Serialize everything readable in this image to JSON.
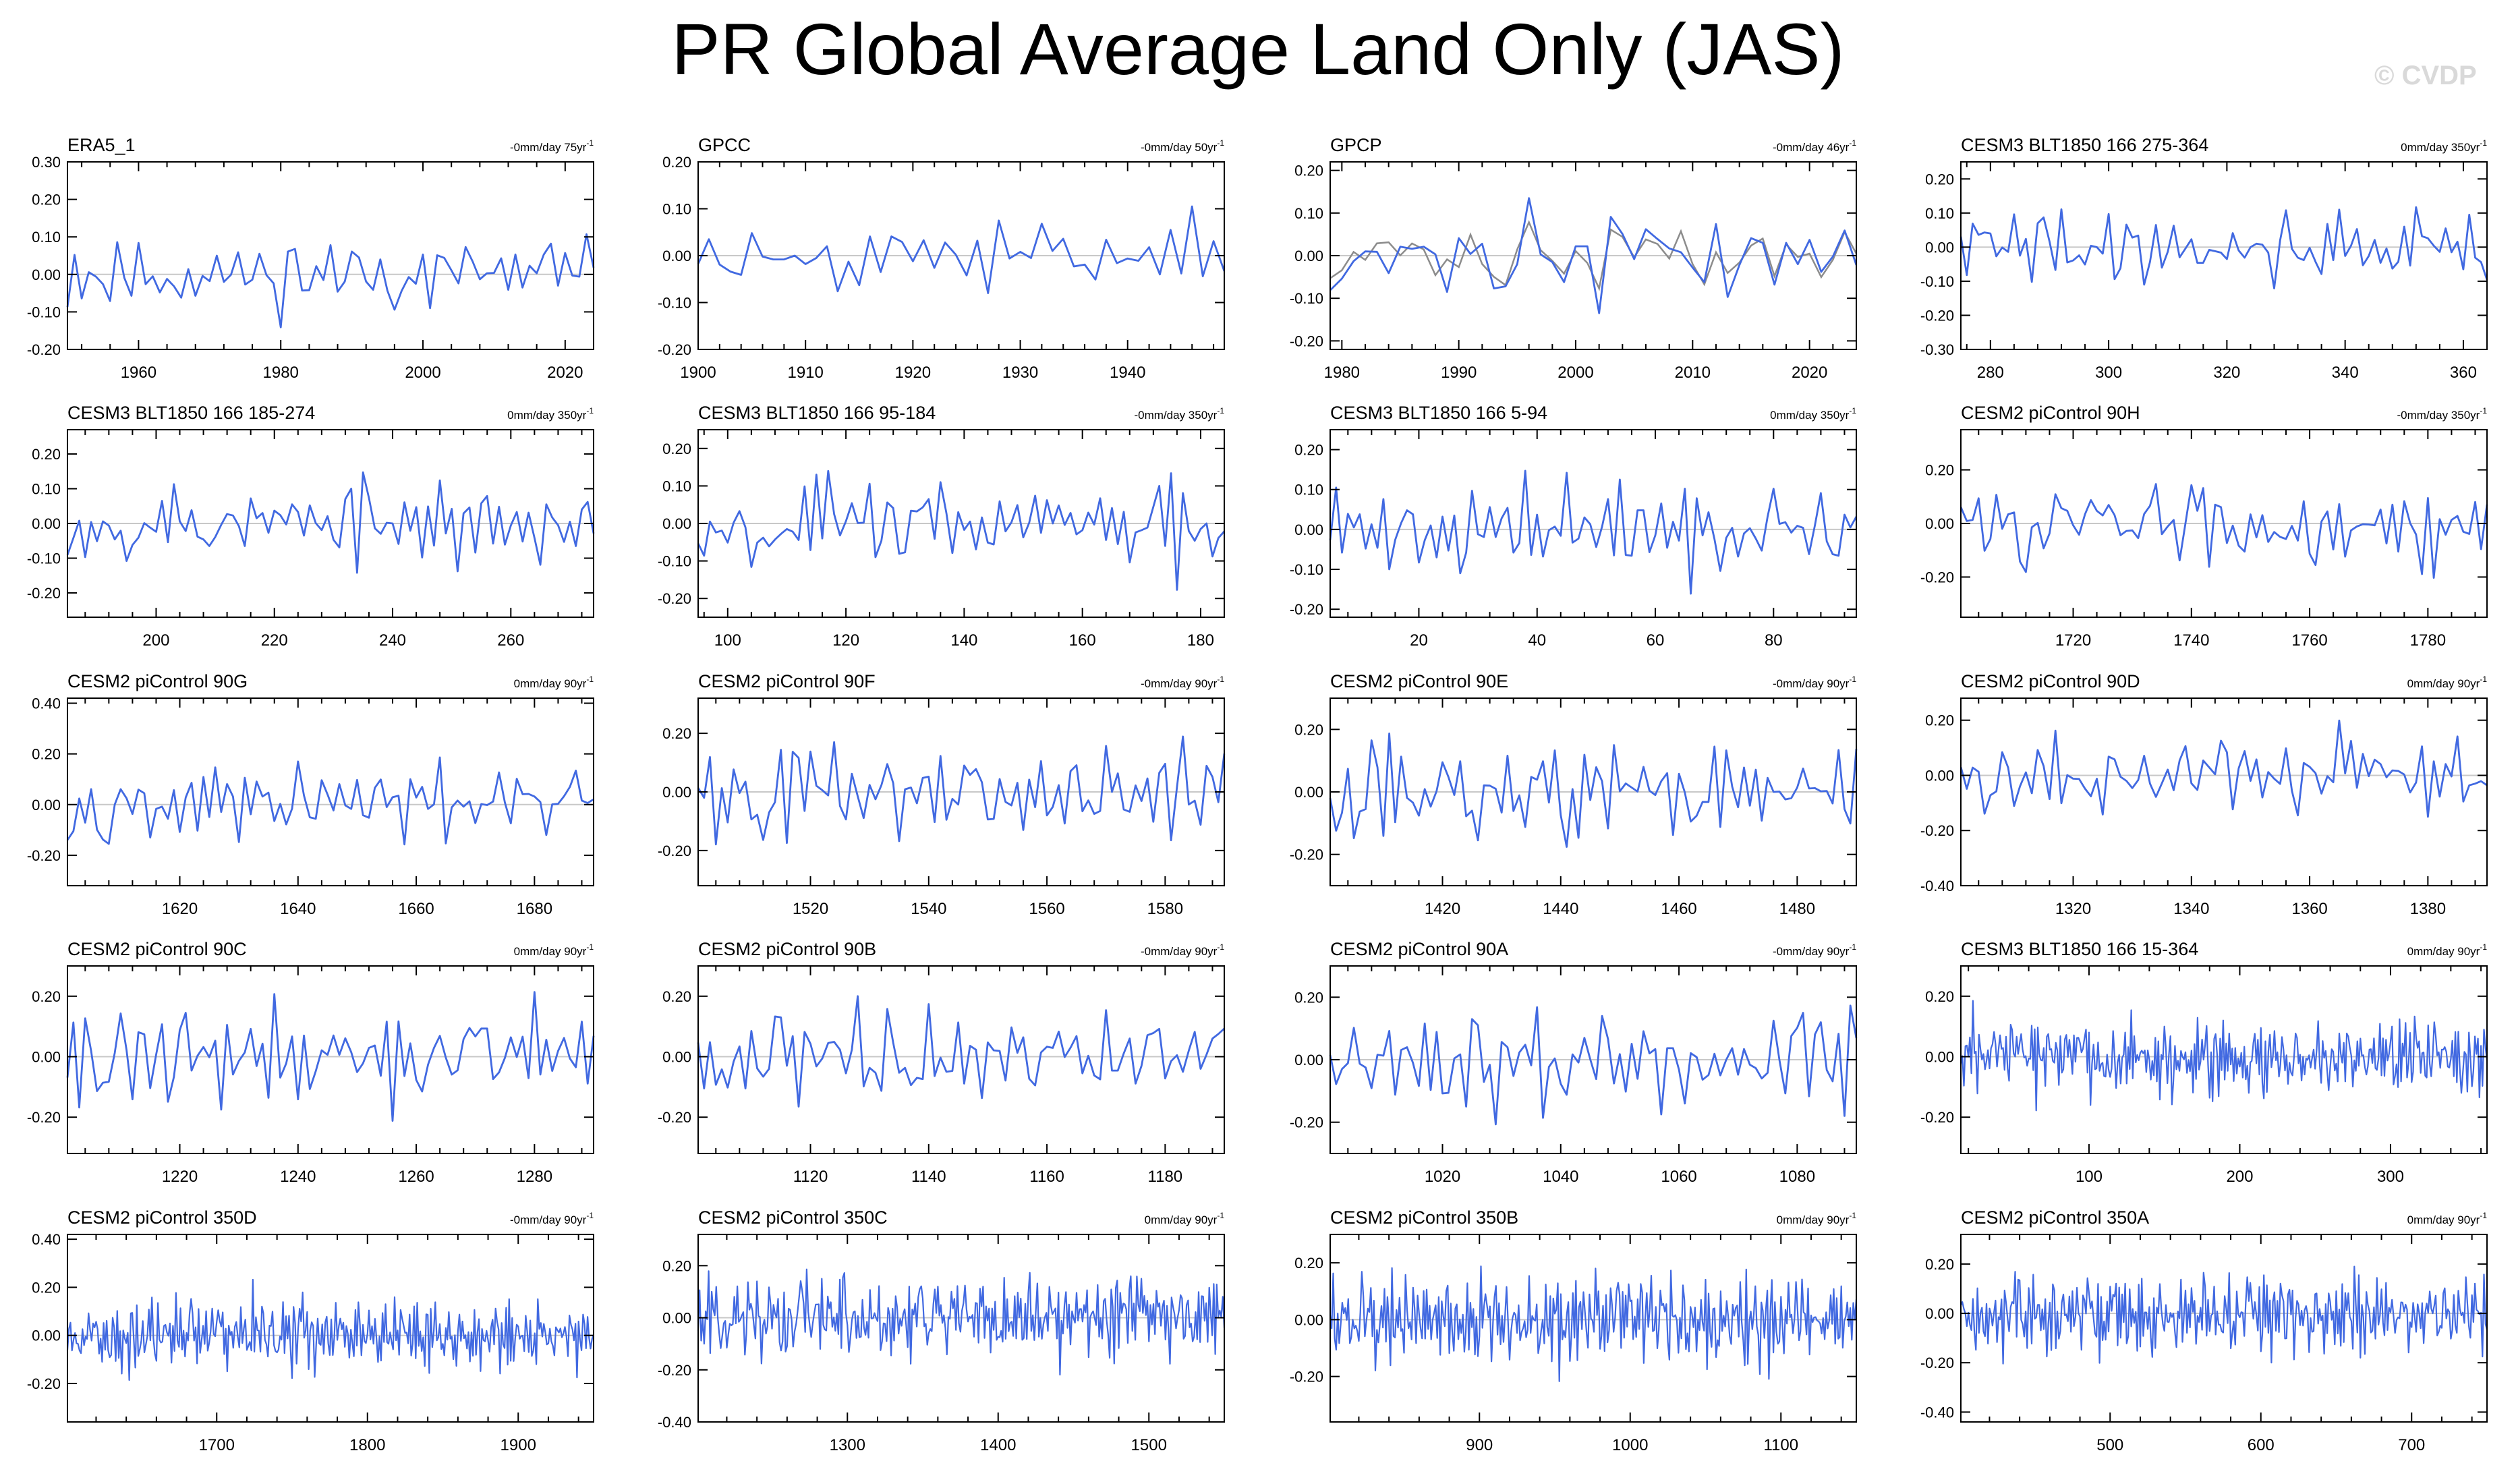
{
  "title": "PR Global Average Land Only (JAS)",
  "watermark": "© CVDP",
  "colors": {
    "series": "#4169e1",
    "obs_overlay": "#8c8c8c",
    "zero_line": "#c8c8c8",
    "axis": "#000000"
  },
  "chart_data": [
    {
      "type": "line",
      "title": "ERA5_1",
      "trend": "-0mm/day 75yr",
      "trend_superscript": "-1",
      "xlim": [
        1950,
        2024
      ],
      "ylim": [
        -0.2,
        0.3
      ],
      "xticks": [
        1960,
        1980,
        2000,
        2020
      ],
      "yticks": [
        -0.2,
        -0.1,
        0.0,
        0.1,
        0.2,
        0.3
      ],
      "ytick_labels": [
        "-0.20",
        "-0.10",
        "0.00",
        "0.10",
        "0.20",
        "0.30"
      ],
      "n": 75,
      "seed": 11,
      "amp": 0.075,
      "zero_line": true
    },
    {
      "type": "line",
      "title": "GPCC",
      "trend": "-0mm/day 50yr",
      "trend_superscript": "-1",
      "xlim": [
        1900,
        1949
      ],
      "ylim": [
        -0.2,
        0.2
      ],
      "xticks": [
        1900,
        1910,
        1920,
        1930,
        1940
      ],
      "yticks": [
        -0.2,
        -0.1,
        0.0,
        0.1,
        0.2
      ],
      "ytick_labels": [
        "-0.20",
        "-0.10",
        "0.00",
        "0.10",
        "0.20"
      ],
      "n": 50,
      "seed": 23,
      "amp": 0.055,
      "zero_line": true
    },
    {
      "type": "line",
      "title": "GPCP",
      "trend": "-0mm/day 46yr",
      "trend_superscript": "-1",
      "xlim": [
        1979,
        2024
      ],
      "ylim": [
        -0.22,
        0.22
      ],
      "xticks": [
        1980,
        1990,
        2000,
        2010,
        2020
      ],
      "yticks": [
        -0.2,
        -0.1,
        0.0,
        0.1,
        0.2
      ],
      "ytick_labels": [
        "-0.20",
        "-0.10",
        "0.00",
        "0.10",
        "0.20"
      ],
      "n": 46,
      "seed": 37,
      "amp": 0.08,
      "zero_line": true,
      "overlay_seed": 38
    },
    {
      "type": "line",
      "title": "CESM3 BLT1850 166 275-364",
      "trend": "0mm/day 350yr",
      "trend_superscript": "-1",
      "xlim": [
        275,
        364
      ],
      "ylim": [
        -0.3,
        0.25
      ],
      "xticks": [
        280,
        300,
        320,
        340,
        360
      ],
      "yticks": [
        -0.3,
        -0.2,
        -0.1,
        0.0,
        0.1,
        0.2
      ],
      "ytick_labels": [
        "-0.30",
        "-0.20",
        "-0.10",
        "0.00",
        "0.10",
        "0.20"
      ],
      "n": 90,
      "seed": 41,
      "amp": 0.085,
      "zero_line": true
    },
    {
      "type": "line",
      "title": "CESM3 BLT1850 166 185-274",
      "trend": "0mm/day 350yr",
      "trend_superscript": "-1",
      "xlim": [
        185,
        274
      ],
      "ylim": [
        -0.27,
        0.27
      ],
      "xticks": [
        200,
        220,
        240,
        260
      ],
      "yticks": [
        -0.2,
        -0.1,
        0.0,
        0.1,
        0.2
      ],
      "ytick_labels": [
        "-0.20",
        "-0.10",
        "0.00",
        "0.10",
        "0.20"
      ],
      "n": 90,
      "seed": 53,
      "amp": 0.09,
      "zero_line": true
    },
    {
      "type": "line",
      "title": "CESM3 BLT1850 166 95-184",
      "trend": "-0mm/day 350yr",
      "trend_superscript": "-1",
      "xlim": [
        95,
        184
      ],
      "ylim": [
        -0.25,
        0.25
      ],
      "xticks": [
        100,
        120,
        140,
        160,
        180
      ],
      "yticks": [
        -0.2,
        -0.1,
        0.0,
        0.1,
        0.2
      ],
      "ytick_labels": [
        "-0.20",
        "-0.10",
        "0.00",
        "0.10",
        "0.20"
      ],
      "n": 90,
      "seed": 67,
      "amp": 0.09,
      "zero_line": true
    },
    {
      "type": "line",
      "title": "CESM3 BLT1850 166 5-94",
      "trend": "0mm/day 350yr",
      "trend_superscript": "-1",
      "xlim": [
        5,
        94
      ],
      "ylim": [
        -0.22,
        0.25
      ],
      "xticks": [
        20,
        40,
        60,
        80
      ],
      "yticks": [
        -0.2,
        -0.1,
        0.0,
        0.1,
        0.2
      ],
      "ytick_labels": [
        "-0.20",
        "-0.10",
        "0.00",
        "0.10",
        "0.20"
      ],
      "n": 90,
      "seed": 71,
      "amp": 0.085,
      "zero_line": true
    },
    {
      "type": "line",
      "title": "CESM2 piControl 90H",
      "trend": "-0mm/day 350yr",
      "trend_superscript": "-1",
      "xlim": [
        1701,
        1790
      ],
      "ylim": [
        -0.35,
        0.35
      ],
      "xticks": [
        1720,
        1740,
        1760,
        1780
      ],
      "yticks": [
        -0.2,
        0.0,
        0.2
      ],
      "ytick_labels": [
        "-0.20",
        "0.00",
        "0.20"
      ],
      "n": 90,
      "seed": 83,
      "amp": 0.12,
      "zero_line": true
    },
    {
      "type": "line",
      "title": "CESM2 piControl 90G",
      "trend": "0mm/day 90yr",
      "trend_superscript": "-1",
      "xlim": [
        1601,
        1690
      ],
      "ylim": [
        -0.32,
        0.42
      ],
      "xticks": [
        1620,
        1640,
        1660,
        1680
      ],
      "yticks": [
        -0.2,
        0.0,
        0.2,
        0.4
      ],
      "ytick_labels": [
        "-0.20",
        "0.00",
        "0.20",
        "0.40"
      ],
      "n": 90,
      "seed": 97,
      "amp": 0.11,
      "zero_line": true
    },
    {
      "type": "line",
      "title": "CESM2 piControl 90F",
      "trend": "-0mm/day 90yr",
      "trend_superscript": "-1",
      "xlim": [
        1501,
        1590
      ],
      "ylim": [
        -0.32,
        0.32
      ],
      "xticks": [
        1520,
        1540,
        1560,
        1580
      ],
      "yticks": [
        -0.2,
        0.0,
        0.2
      ],
      "ytick_labels": [
        "-0.20",
        "0.00",
        "0.20"
      ],
      "n": 90,
      "seed": 101,
      "amp": 0.13,
      "zero_line": true
    },
    {
      "type": "line",
      "title": "CESM2 piControl 90E",
      "trend": "-0mm/day 90yr",
      "trend_superscript": "-1",
      "xlim": [
        1401,
        1490
      ],
      "ylim": [
        -0.3,
        0.3
      ],
      "xticks": [
        1420,
        1440,
        1460,
        1480
      ],
      "yticks": [
        -0.2,
        0.0,
        0.2
      ],
      "ytick_labels": [
        "-0.20",
        "0.00",
        "0.20"
      ],
      "n": 90,
      "seed": 113,
      "amp": 0.12,
      "zero_line": true
    },
    {
      "type": "line",
      "title": "CESM2 piControl 90D",
      "trend": "0mm/day 90yr",
      "trend_superscript": "-1",
      "xlim": [
        1301,
        1390
      ],
      "ylim": [
        -0.4,
        0.28
      ],
      "xticks": [
        1320,
        1340,
        1360,
        1380
      ],
      "yticks": [
        -0.4,
        -0.2,
        0.0,
        0.2
      ],
      "ytick_labels": [
        "-0.40",
        "-0.20",
        "0.00",
        "0.20"
      ],
      "n": 90,
      "seed": 127,
      "amp": 0.12,
      "zero_line": true
    },
    {
      "type": "line",
      "title": "CESM2 piControl 90C",
      "trend": "0mm/day 90yr",
      "trend_superscript": "-1",
      "xlim": [
        1201,
        1290
      ],
      "ylim": [
        -0.32,
        0.3
      ],
      "xticks": [
        1220,
        1240,
        1260,
        1280
      ],
      "yticks": [
        -0.2,
        0.0,
        0.2
      ],
      "ytick_labels": [
        "-0.20",
        "0.00",
        "0.20"
      ],
      "n": 90,
      "seed": 131,
      "amp": 0.12,
      "zero_line": true
    },
    {
      "type": "line",
      "title": "CESM2 piControl 90B",
      "trend": "-0mm/day 90yr",
      "trend_superscript": "-1",
      "xlim": [
        1101,
        1190
      ],
      "ylim": [
        -0.32,
        0.3
      ],
      "xticks": [
        1120,
        1140,
        1160,
        1180
      ],
      "yticks": [
        -0.2,
        0.0,
        0.2
      ],
      "ytick_labels": [
        "-0.20",
        "0.00",
        "0.20"
      ],
      "n": 90,
      "seed": 137,
      "amp": 0.12,
      "zero_line": true
    },
    {
      "type": "line",
      "title": "CESM2 piControl 90A",
      "trend": "-0mm/day 90yr",
      "trend_superscript": "-1",
      "xlim": [
        1001,
        1090
      ],
      "ylim": [
        -0.3,
        0.3
      ],
      "xticks": [
        1020,
        1040,
        1060,
        1080
      ],
      "yticks": [
        -0.2,
        0.0,
        0.2
      ],
      "ytick_labels": [
        "-0.20",
        "0.00",
        "0.20"
      ],
      "n": 90,
      "seed": 149,
      "amp": 0.12,
      "zero_line": true
    },
    {
      "type": "line",
      "title": "CESM3 BLT1850 166 15-364",
      "trend": "0mm/day 90yr",
      "trend_superscript": "-1",
      "xlim": [
        15,
        364
      ],
      "ylim": [
        -0.32,
        0.3
      ],
      "xticks": [
        100,
        200,
        300
      ],
      "yticks": [
        -0.2,
        0.0,
        0.2
      ],
      "ytick_labels": [
        "-0.20",
        "0.00",
        "0.20"
      ],
      "n": 350,
      "seed": 151,
      "amp": 0.09,
      "zero_line": true
    },
    {
      "type": "line",
      "title": "CESM2 piControl 350D",
      "trend": "-0mm/day 90yr",
      "trend_superscript": "-1",
      "xlim": [
        1601,
        1950
      ],
      "ylim": [
        -0.36,
        0.42
      ],
      "xticks": [
        1700,
        1800,
        1900
      ],
      "yticks": [
        -0.2,
        0.0,
        0.2,
        0.4
      ],
      "ytick_labels": [
        "-0.20",
        "0.00",
        "0.20",
        "0.40"
      ],
      "n": 350,
      "seed": 163,
      "amp": 0.11,
      "zero_line": true
    },
    {
      "type": "line",
      "title": "CESM2 piControl 350C",
      "trend": "0mm/day 90yr",
      "trend_superscript": "-1",
      "xlim": [
        1201,
        1550
      ],
      "ylim": [
        -0.4,
        0.32
      ],
      "xticks": [
        1300,
        1400,
        1500
      ],
      "yticks": [
        -0.4,
        -0.2,
        0.0,
        0.2
      ],
      "ytick_labels": [
        "-0.40",
        "-0.20",
        "0.00",
        "0.20"
      ],
      "n": 350,
      "seed": 173,
      "amp": 0.12,
      "zero_line": true
    },
    {
      "type": "line",
      "title": "CESM2 piControl 350B",
      "trend": "0mm/day 90yr",
      "trend_superscript": "-1",
      "xlim": [
        801,
        1150
      ],
      "ylim": [
        -0.36,
        0.3
      ],
      "xticks": [
        900,
        1000,
        1100
      ],
      "yticks": [
        -0.2,
        0.0,
        0.2
      ],
      "ytick_labels": [
        "-0.20",
        "0.00",
        "0.20"
      ],
      "n": 350,
      "seed": 181,
      "amp": 0.12,
      "zero_line": true
    },
    {
      "type": "line",
      "title": "CESM2 piControl 350A",
      "trend": "0mm/day 90yr",
      "trend_superscript": "-1",
      "xlim": [
        401,
        750
      ],
      "ylim": [
        -0.44,
        0.32
      ],
      "xticks": [
        500,
        600,
        700
      ],
      "yticks": [
        -0.4,
        -0.2,
        0.0,
        0.2
      ],
      "ytick_labels": [
        "-0.40",
        "-0.20",
        "0.00",
        "0.20"
      ],
      "n": 350,
      "seed": 191,
      "amp": 0.12,
      "zero_line": true
    }
  ]
}
